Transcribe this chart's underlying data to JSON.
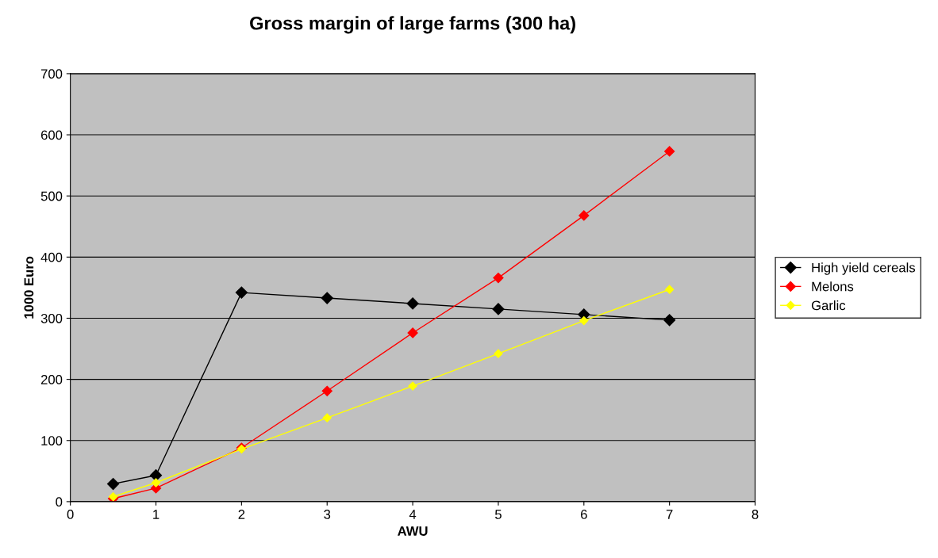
{
  "chart_data": {
    "type": "line",
    "title": "Gross margin of large farms (300 ha)",
    "xlabel": "AWU",
    "ylabel": "1000 Euro",
    "x": [
      0.5,
      1,
      2,
      3,
      4,
      5,
      6,
      7
    ],
    "series": [
      {
        "name": "High yield cereals",
        "color": "#000000",
        "values": [
          29,
          43,
          342,
          333,
          324,
          315,
          306,
          297
        ]
      },
      {
        "name": "Melons",
        "color": "#ff0000",
        "values": [
          5,
          22,
          88,
          181,
          276,
          366,
          468,
          573
        ]
      },
      {
        "name": "Garlic",
        "color": "#ffff00",
        "values": [
          8,
          31,
          86,
          137,
          189,
          242,
          296,
          347
        ]
      }
    ],
    "xlim": [
      0,
      8
    ],
    "xticks": [
      0,
      1,
      2,
      3,
      4,
      5,
      6,
      7,
      8
    ],
    "ylim": [
      0,
      700
    ],
    "yticks": [
      0,
      100,
      200,
      300,
      400,
      500,
      600,
      700
    ],
    "grid": "y",
    "legend": "right",
    "marker": "diamond",
    "line_style": "solid"
  }
}
